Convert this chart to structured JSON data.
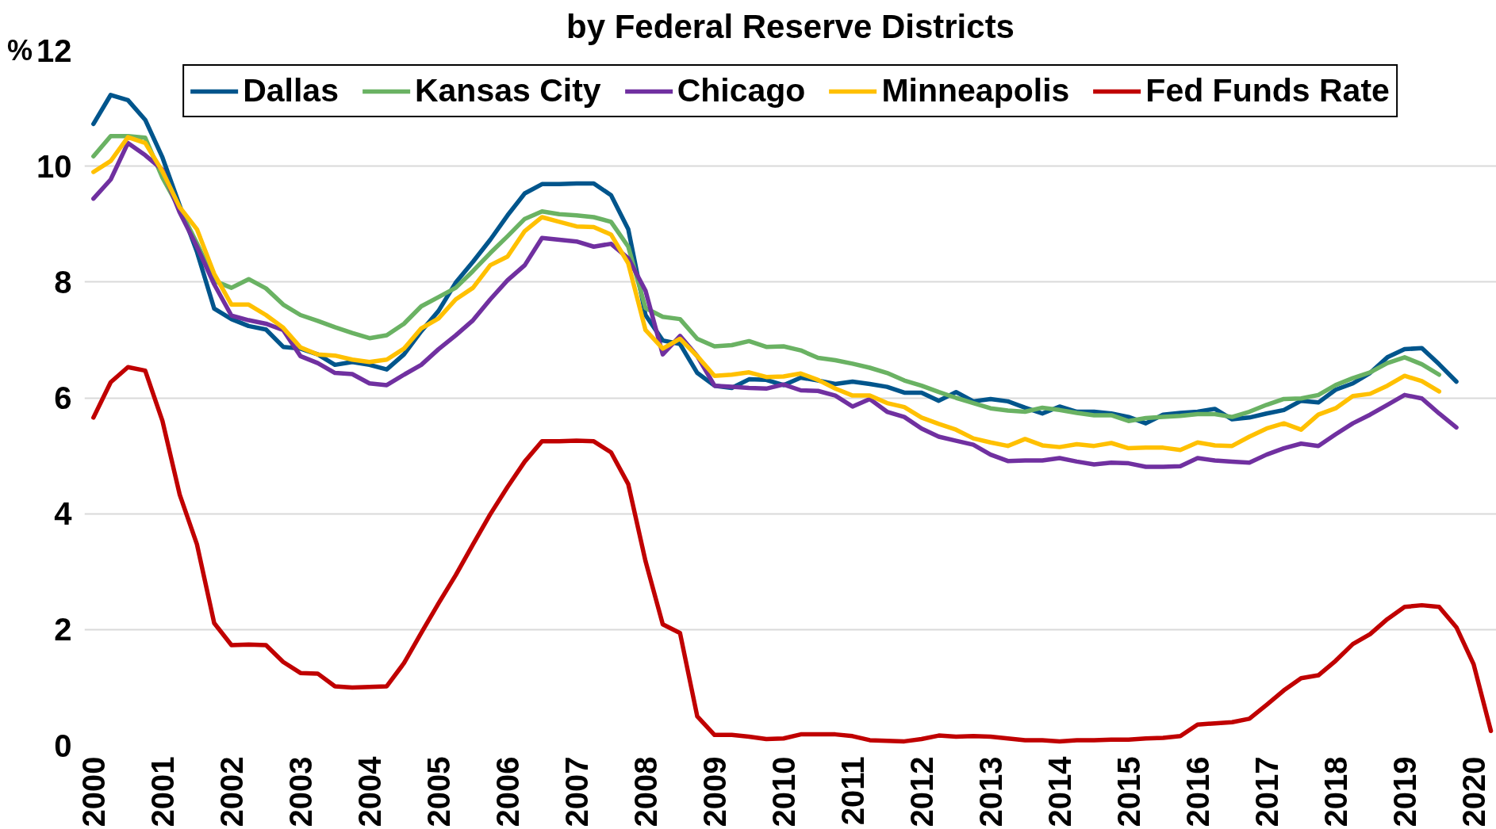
{
  "chart_data": {
    "type": "line",
    "title": "by Federal Reserve Districts",
    "ylabel": "%",
    "x": [
      2000,
      2000.25,
      2000.5,
      2000.75,
      2001,
      2001.25,
      2001.5,
      2001.75,
      2002,
      2002.25,
      2002.5,
      2002.75,
      2003,
      2003.25,
      2003.5,
      2003.75,
      2004,
      2004.25,
      2004.5,
      2004.75,
      2005,
      2005.25,
      2005.5,
      2005.75,
      2006,
      2006.25,
      2006.5,
      2006.75,
      2007,
      2007.25,
      2007.5,
      2007.75,
      2008,
      2008.25,
      2008.5,
      2008.75,
      2009,
      2009.25,
      2009.5,
      2009.75,
      2010,
      2010.25,
      2010.5,
      2010.75,
      2011,
      2011.25,
      2011.5,
      2011.75,
      2012,
      2012.25,
      2012.5,
      2012.75,
      2013,
      2013.25,
      2013.5,
      2013.75,
      2014,
      2014.25,
      2014.5,
      2014.75,
      2015,
      2015.25,
      2015.5,
      2015.75,
      2016,
      2016.25,
      2016.5,
      2016.75,
      2017,
      2017.25,
      2017.5,
      2017.75,
      2018,
      2018.25,
      2018.5,
      2018.75,
      2019,
      2019.25,
      2019.5,
      2019.75,
      2020,
      2020.25
    ],
    "series": [
      {
        "name": "Dallas",
        "color": "#00558c",
        "values": [
          10.73,
          11.23,
          11.14,
          10.8,
          10.15,
          9.32,
          8.52,
          7.54,
          7.36,
          7.24,
          7.18,
          6.88,
          6.85,
          6.75,
          6.57,
          6.62,
          6.57,
          6.49,
          6.75,
          7.15,
          7.5,
          7.99,
          8.35,
          8.73,
          9.15,
          9.53,
          9.69,
          9.69,
          9.7,
          9.7,
          9.5,
          8.91,
          7.43,
          6.99,
          6.93,
          6.43,
          6.21,
          6.17,
          6.32,
          6.31,
          6.22,
          6.35,
          6.3,
          6.24,
          6.28,
          6.24,
          6.19,
          6.09,
          6.09,
          5.95,
          6.1,
          5.94,
          5.98,
          5.94,
          5.83,
          5.73,
          5.85,
          5.76,
          5.76,
          5.73,
          5.67,
          5.56,
          5.71,
          5.74,
          5.76,
          5.81,
          5.63,
          5.66,
          5.73,
          5.79,
          5.95,
          5.92,
          6.14,
          6.25,
          6.43,
          6.7,
          6.84,
          6.86,
          6.58,
          6.28,
          null,
          null
        ]
      },
      {
        "name": "Kansas City",
        "color": "#6ab263",
        "values": [
          10.17,
          10.52,
          10.52,
          10.49,
          9.8,
          9.26,
          8.67,
          8.02,
          7.9,
          8.05,
          7.89,
          7.61,
          7.43,
          7.33,
          7.22,
          7.12,
          7.03,
          7.08,
          7.28,
          7.58,
          7.74,
          7.9,
          8.19,
          8.5,
          8.79,
          9.09,
          9.22,
          9.17,
          9.15,
          9.12,
          9.04,
          8.61,
          7.55,
          7.4,
          7.36,
          7.02,
          6.89,
          6.91,
          6.98,
          6.88,
          6.89,
          6.82,
          6.69,
          6.65,
          6.59,
          6.52,
          6.43,
          6.3,
          6.21,
          6.1,
          6.0,
          5.91,
          5.82,
          5.78,
          5.76,
          5.83,
          5.79,
          5.74,
          5.7,
          5.7,
          5.6,
          5.65,
          5.67,
          5.69,
          5.72,
          5.72,
          5.67,
          5.76,
          5.88,
          5.98,
          5.99,
          6.05,
          6.22,
          6.34,
          6.44,
          6.6,
          6.7,
          6.58,
          6.4,
          null,
          null,
          null
        ]
      },
      {
        "name": "Chicago",
        "color": "#7030a0",
        "values": [
          9.44,
          9.77,
          10.4,
          10.19,
          9.94,
          9.2,
          8.61,
          7.96,
          7.42,
          7.34,
          7.28,
          7.17,
          6.72,
          6.6,
          6.43,
          6.41,
          6.25,
          6.22,
          6.4,
          6.57,
          6.84,
          7.08,
          7.34,
          7.7,
          8.03,
          8.29,
          8.76,
          8.73,
          8.7,
          8.61,
          8.66,
          8.41,
          7.85,
          6.75,
          7.07,
          6.72,
          6.21,
          6.19,
          6.17,
          6.16,
          6.23,
          6.13,
          6.12,
          6.04,
          5.85,
          5.98,
          5.76,
          5.67,
          5.47,
          5.33,
          5.26,
          5.19,
          5.02,
          4.91,
          4.92,
          4.92,
          4.96,
          4.9,
          4.85,
          4.88,
          4.87,
          4.81,
          4.81,
          4.82,
          4.96,
          4.92,
          4.9,
          4.88,
          5.02,
          5.13,
          5.21,
          5.17,
          5.37,
          5.56,
          5.71,
          5.88,
          6.05,
          5.99,
          5.73,
          5.49,
          null,
          null
        ]
      },
      {
        "name": "Minneapolis",
        "color": "#ffc000",
        "values": [
          9.9,
          10.09,
          10.5,
          10.4,
          9.91,
          9.29,
          8.91,
          8.14,
          7.61,
          7.61,
          7.43,
          7.21,
          6.87,
          6.75,
          6.73,
          6.66,
          6.62,
          6.66,
          6.85,
          7.2,
          7.37,
          7.7,
          7.9,
          8.29,
          8.44,
          8.88,
          9.12,
          9.04,
          8.96,
          8.95,
          8.82,
          8.32,
          7.17,
          6.85,
          7.02,
          6.72,
          6.38,
          6.4,
          6.44,
          6.36,
          6.37,
          6.42,
          6.31,
          6.16,
          6.04,
          6.04,
          5.91,
          5.84,
          5.66,
          5.55,
          5.45,
          5.3,
          5.23,
          5.17,
          5.29,
          5.18,
          5.15,
          5.2,
          5.17,
          5.22,
          5.13,
          5.14,
          5.14,
          5.1,
          5.23,
          5.18,
          5.17,
          5.33,
          5.47,
          5.56,
          5.45,
          5.71,
          5.82,
          6.03,
          6.07,
          6.21,
          6.38,
          6.29,
          6.11,
          null,
          null,
          null
        ]
      },
      {
        "name": "Fed Funds Rate",
        "color": "#c00000",
        "values": [
          5.66,
          6.27,
          6.53,
          6.47,
          5.6,
          4.33,
          3.47,
          2.11,
          1.73,
          1.74,
          1.73,
          1.44,
          1.25,
          1.24,
          1.02,
          1.0,
          1.01,
          1.02,
          1.42,
          1.94,
          2.45,
          2.94,
          3.47,
          3.99,
          4.46,
          4.9,
          5.25,
          5.25,
          5.26,
          5.25,
          5.06,
          4.51,
          3.18,
          2.09,
          1.94,
          0.5,
          0.18,
          0.18,
          0.15,
          0.11,
          0.12,
          0.19,
          0.19,
          0.19,
          0.16,
          0.09,
          0.08,
          0.07,
          0.11,
          0.17,
          0.15,
          0.16,
          0.15,
          0.12,
          0.09,
          0.09,
          0.07,
          0.09,
          0.09,
          0.1,
          0.1,
          0.12,
          0.13,
          0.16,
          0.36,
          0.38,
          0.4,
          0.46,
          0.7,
          0.95,
          1.16,
          1.21,
          1.46,
          1.75,
          1.92,
          2.18,
          2.39,
          2.42,
          2.39,
          2.04,
          1.4,
          0.25
        ]
      }
    ],
    "xlim": [
      1999.87,
      2020.33
    ],
    "xticks": [
      2000,
      2001,
      2002,
      2003,
      2004,
      2005,
      2006,
      2007,
      2008,
      2009,
      2010,
      2011,
      2012,
      2013,
      2014,
      2015,
      2016,
      2017,
      2018,
      2019,
      2020
    ],
    "ylim": [
      0,
      12
    ],
    "yticks": [
      0,
      2,
      4,
      6,
      8,
      10,
      12
    ],
    "grid": "y",
    "legend": "top"
  }
}
